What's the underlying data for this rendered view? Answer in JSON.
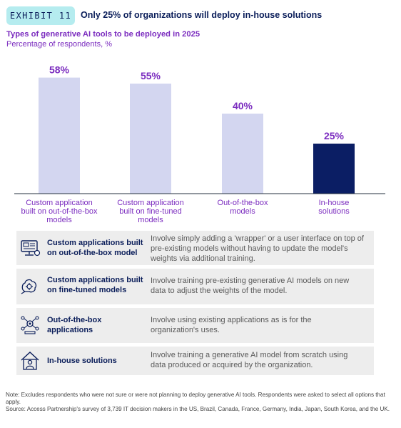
{
  "header": {
    "exhibit": "EXHIBIT 11",
    "title": "Only 25% of organizations will deploy in-house solutions"
  },
  "colors": {
    "accent_purple": "#7b2cbf",
    "bar_light": "#d3d6f0",
    "bar_dark": "#0b1e64",
    "badge": "#b5ecef"
  },
  "chart_data": {
    "type": "bar",
    "title": "Types of generative AI tools to be deployed in 2025",
    "subtitle": "Percentage of respondents, %",
    "categories": [
      [
        "Custom application",
        "built on out-of-the-box",
        "models"
      ],
      [
        "Custom application",
        "built on fine-tuned",
        "models"
      ],
      [
        "Out-of-the-box",
        "models"
      ],
      [
        "In-house",
        "solutions"
      ]
    ],
    "values": [
      58,
      55,
      40,
      25
    ],
    "value_labels": [
      "58%",
      "55%",
      "40%",
      "25%"
    ],
    "highlight_index": 3,
    "ylim": [
      0,
      60
    ],
    "grid": false
  },
  "definitions": [
    {
      "icon": "monitor-app-icon",
      "label": "Custom applications built on out-of-the-box model",
      "description": "Involve simply adding a 'wrapper' or a user interface on top of pre-existing models without having to update the model's weights via additional training."
    },
    {
      "icon": "brain-gear-icon",
      "label": "Custom applications built on fine-tuned models",
      "description": "Involve training pre-existing generative AI models on new data to adjust the weights of the model."
    },
    {
      "icon": "network-gear-icon",
      "label": "Out-of-the-box applications",
      "description": "Involve using existing applications as is for the organization's uses."
    },
    {
      "icon": "house-user-icon",
      "label": "In-house solutions",
      "description": "Involve training a generative AI model from scratch using data produced or acquired by the organization."
    }
  ],
  "notes": {
    "note": "Note: Excludes respondents who were not sure or were not planning to deploy generative AI tools. Respondents were asked to select all options that apply.",
    "source": "Source: Access Partnership's survey of 3,739 IT decision makers in the US, Brazil, Canada, France, Germany, India, Japan, South Korea, and the UK."
  }
}
